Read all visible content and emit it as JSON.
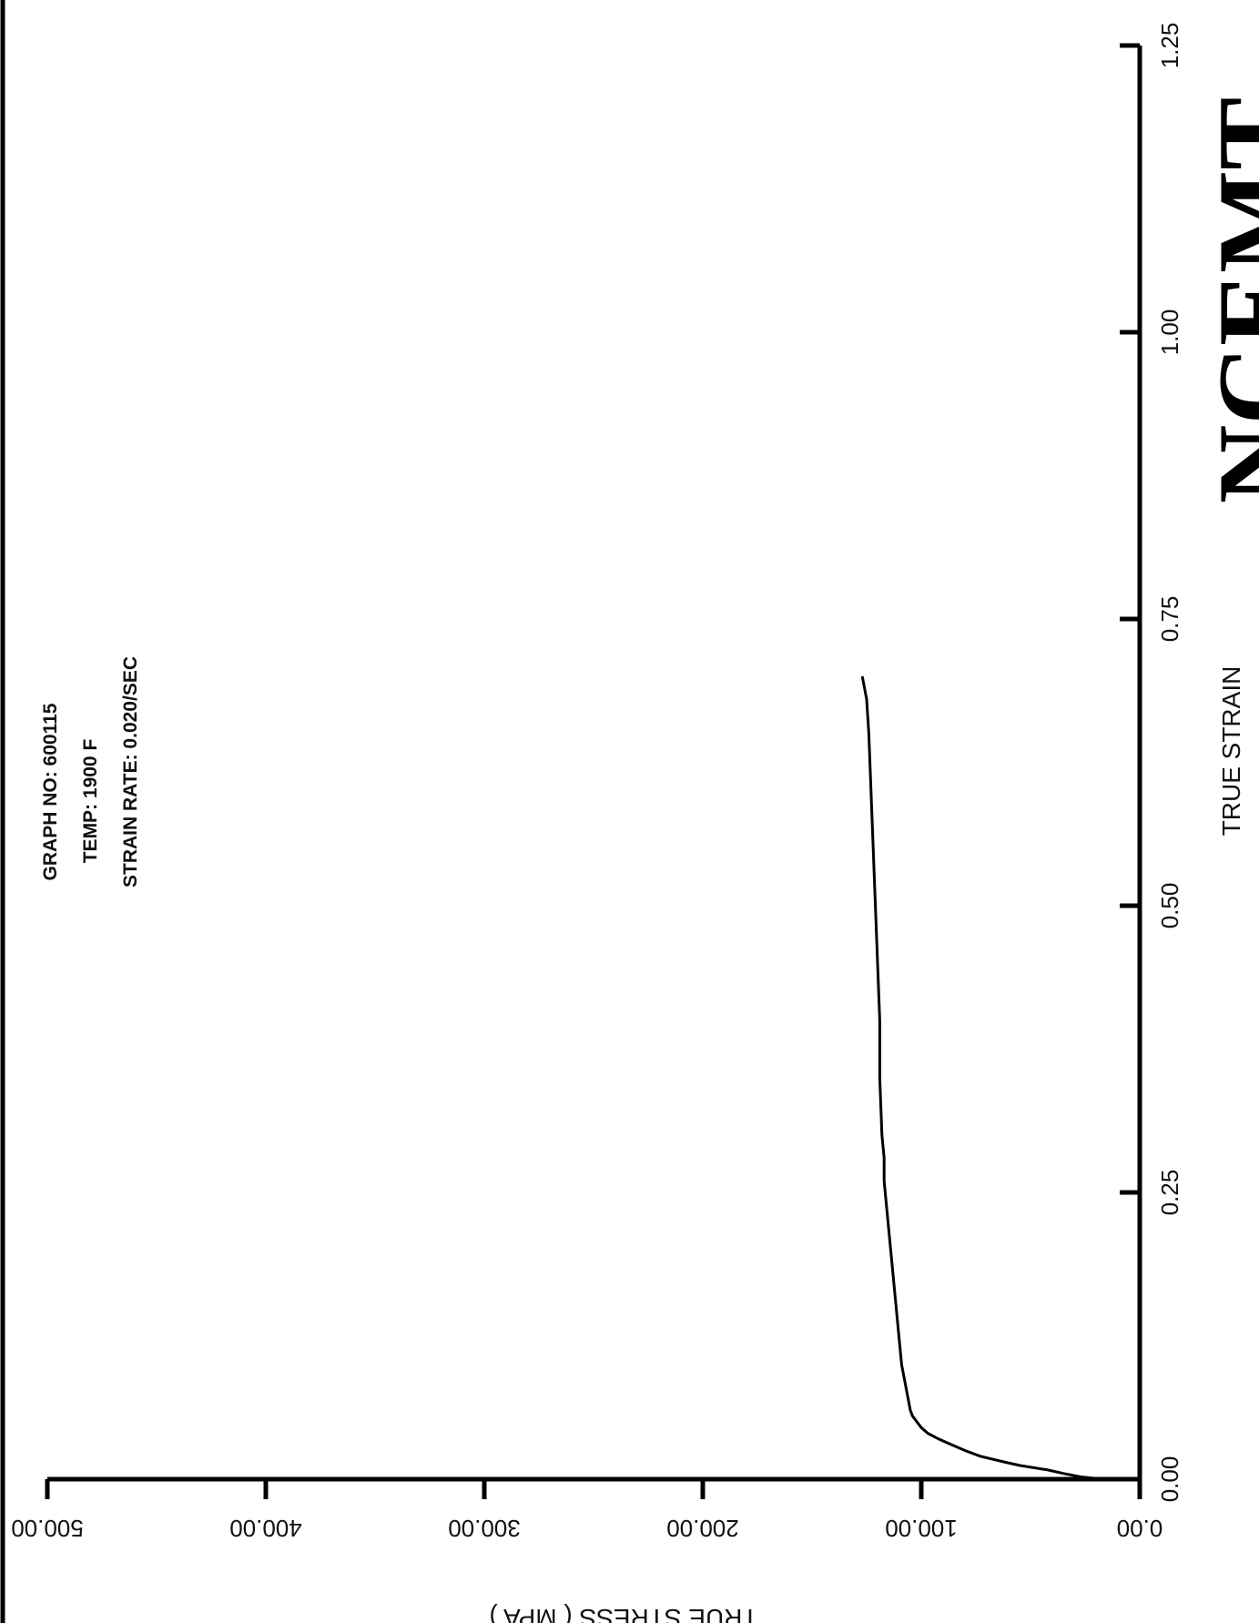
{
  "chart_data": {
    "type": "line",
    "orientation": "rotated 90° (strain runs bottom-to-top, stress runs right-to-left)",
    "xlabel": "TRUE STRAIN",
    "ylabel": "TRUE STRESS ( MPA )",
    "xlim": [
      0,
      1.25
    ],
    "ylim": [
      0,
      500
    ],
    "x_ticks": [
      "0.00",
      "0.25",
      "0.50",
      "0.75",
      "1.00",
      "1.25"
    ],
    "y_ticks": [
      "0.00",
      "100.00",
      "200.00",
      "300.00",
      "400.00",
      "500.00"
    ],
    "grid": false,
    "annotations": [
      "GRAPH NO: 600115",
      "TEMP: 1900 F",
      "STRAIN RATE: 0.020/SEC"
    ],
    "series": [
      {
        "x": [
          0.0,
          0.002,
          0.005,
          0.008,
          0.012,
          0.015,
          0.02,
          0.025,
          0.03,
          0.035,
          0.04,
          0.045,
          0.05,
          0.055,
          0.06,
          0.07,
          0.08,
          0.09,
          0.1,
          0.12,
          0.14,
          0.16,
          0.18,
          0.2,
          0.22,
          0.24,
          0.26,
          0.28,
          0.3,
          0.35,
          0.4,
          0.45,
          0.5,
          0.55,
          0.6,
          0.65,
          0.68,
          0.7
        ],
        "y": [
          17,
          27,
          35,
          42,
          55,
          62,
          73,
          80,
          86,
          92,
          97,
          100,
          102,
          104,
          105,
          106,
          107,
          108,
          109,
          110,
          111,
          112,
          113,
          114,
          115,
          116,
          117,
          117,
          118,
          119,
          119,
          120,
          121,
          122,
          123,
          124,
          125,
          127
        ]
      }
    ]
  },
  "stamp_text": "NCEMT"
}
